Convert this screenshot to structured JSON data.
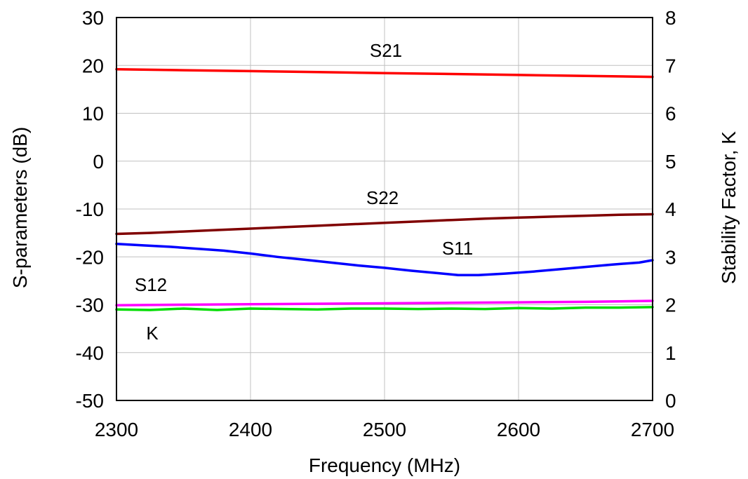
{
  "chart_data": {
    "type": "line",
    "title": "",
    "xlabel": "Frequency (MHz)",
    "ylabel": "S-parameters (dB)",
    "y2label": "Stability Factor, K",
    "xlim": [
      2300,
      2700
    ],
    "ylim": [
      -50,
      30
    ],
    "y2lim": [
      0,
      8
    ],
    "x_ticks": [
      2300,
      2400,
      2500,
      2600,
      2700
    ],
    "y_ticks": [
      -50,
      -40,
      -30,
      -20,
      -10,
      0,
      10,
      20,
      30
    ],
    "y2_ticks": [
      0,
      1,
      2,
      3,
      4,
      5,
      6,
      7,
      8
    ],
    "grid": true,
    "series": [
      {
        "name": "S21",
        "axis": "left",
        "color": "#ff0000",
        "x": [
          2300,
          2350,
          2400,
          2450,
          2500,
          2550,
          2600,
          2650,
          2700
        ],
        "values": [
          19.2,
          19.0,
          18.8,
          18.6,
          18.4,
          18.2,
          18.0,
          17.8,
          17.6
        ]
      },
      {
        "name": "S22",
        "axis": "left",
        "color": "#800000",
        "x": [
          2300,
          2325,
          2350,
          2375,
          2400,
          2425,
          2450,
          2475,
          2500,
          2525,
          2550,
          2575,
          2600,
          2625,
          2650,
          2675,
          2700
        ],
        "values": [
          -15.2,
          -15.0,
          -14.7,
          -14.4,
          -14.1,
          -13.8,
          -13.5,
          -13.2,
          -12.9,
          -12.6,
          -12.3,
          -12.0,
          -11.8,
          -11.6,
          -11.4,
          -11.2,
          -11.1
        ]
      },
      {
        "name": "S11",
        "axis": "left",
        "color": "#0000ff",
        "x": [
          2300,
          2320,
          2340,
          2360,
          2380,
          2400,
          2420,
          2440,
          2460,
          2480,
          2500,
          2520,
          2540,
          2555,
          2570,
          2590,
          2610,
          2630,
          2650,
          2670,
          2690,
          2700
        ],
        "values": [
          -17.3,
          -17.6,
          -17.9,
          -18.3,
          -18.7,
          -19.3,
          -20.0,
          -20.6,
          -21.2,
          -21.8,
          -22.3,
          -22.9,
          -23.4,
          -23.8,
          -23.8,
          -23.5,
          -23.1,
          -22.6,
          -22.1,
          -21.6,
          -21.2,
          -20.7
        ]
      },
      {
        "name": "S12",
        "axis": "left",
        "color": "#ff00ff",
        "x": [
          2300,
          2350,
          2400,
          2450,
          2500,
          2550,
          2600,
          2650,
          2700
        ],
        "values": [
          -30.1,
          -30.0,
          -29.9,
          -29.8,
          -29.7,
          -29.6,
          -29.5,
          -29.4,
          -29.2
        ]
      },
      {
        "name": "K",
        "axis": "right",
        "color": "#00dd00",
        "x": [
          2300,
          2325,
          2350,
          2375,
          2400,
          2425,
          2450,
          2475,
          2500,
          2525,
          2550,
          2575,
          2600,
          2625,
          2650,
          2675,
          2700
        ],
        "values": [
          1.9,
          1.89,
          1.92,
          1.89,
          1.92,
          1.91,
          1.9,
          1.92,
          1.92,
          1.91,
          1.92,
          1.91,
          1.93,
          1.92,
          1.94,
          1.94,
          1.95
        ]
      }
    ],
    "annotations": [
      "S21",
      "S22",
      "S11",
      "S12",
      "K"
    ]
  }
}
